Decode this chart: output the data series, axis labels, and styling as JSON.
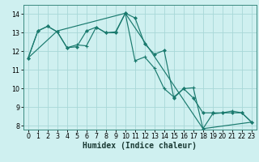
{
  "xlabel": "Humidex (Indice chaleur)",
  "bg_color": "#cff0f0",
  "grid_color": "#a8d8d8",
  "line_color": "#1a7a6e",
  "xlim": [
    -0.5,
    23.5
  ],
  "ylim": [
    7.8,
    14.5
  ],
  "yticks": [
    8,
    9,
    10,
    11,
    12,
    13,
    14
  ],
  "xticks": [
    0,
    1,
    2,
    3,
    4,
    5,
    6,
    7,
    8,
    9,
    10,
    11,
    12,
    13,
    14,
    15,
    16,
    17,
    18,
    19,
    20,
    21,
    22,
    23
  ],
  "line1_x": [
    0,
    1,
    2,
    3,
    4,
    5,
    6,
    7,
    8,
    9,
    10,
    11,
    12,
    13,
    14,
    15,
    16,
    17,
    18,
    19,
    20,
    21,
    22,
    23
  ],
  "line1_y": [
    11.65,
    13.1,
    13.35,
    13.05,
    12.2,
    12.25,
    13.1,
    13.3,
    13.0,
    13.0,
    14.05,
    13.8,
    12.4,
    11.85,
    12.05,
    9.5,
    10.0,
    9.5,
    8.7,
    8.7,
    8.7,
    8.7,
    8.7,
    8.2
  ],
  "line2_x": [
    0,
    1,
    2,
    3,
    4,
    5,
    6,
    7,
    8,
    9,
    10,
    11,
    12,
    13,
    14,
    15,
    16,
    17,
    18,
    19,
    20,
    21,
    22,
    23
  ],
  "line2_y": [
    11.65,
    13.1,
    13.35,
    13.05,
    12.2,
    12.35,
    12.3,
    13.3,
    13.0,
    13.05,
    14.05,
    11.5,
    11.7,
    11.1,
    10.0,
    9.55,
    10.0,
    10.05,
    7.85,
    8.65,
    8.7,
    8.8,
    8.7,
    8.2
  ],
  "line3_x": [
    0,
    3,
    10,
    18,
    23
  ],
  "line3_y": [
    11.65,
    13.1,
    14.05,
    7.85,
    8.2
  ],
  "tick_fontsize": 5.8,
  "label_fontsize": 7.0
}
